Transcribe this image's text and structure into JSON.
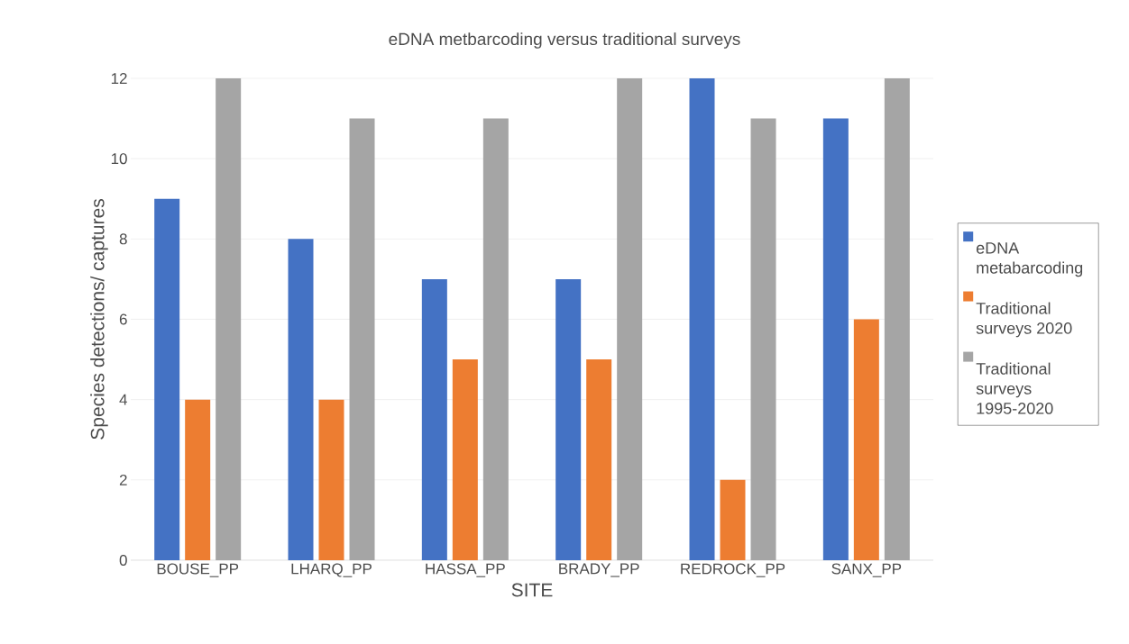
{
  "chart_data": {
    "type": "bar",
    "title": "eDNA metbarcoding versus traditional surveys",
    "xlabel": "SITE",
    "ylabel": "Species detections/ captures",
    "categories": [
      "BOUSE_PP",
      "LHARQ_PP",
      "HASSA_PP",
      "BRADY_PP",
      "REDROCK_PP",
      "SANX_PP"
    ],
    "series": [
      {
        "name": "eDNA metabarcoding",
        "color": "#4472c4",
        "values": [
          9,
          8,
          7,
          7,
          12,
          11
        ]
      },
      {
        "name": "Traditional surveys 2020",
        "color": "#ed7d31",
        "values": [
          4,
          4,
          5,
          5,
          2,
          6
        ]
      },
      {
        "name": "Traditional surveys 1995-2020",
        "color": "#a5a5a5",
        "values": [
          12,
          11,
          11,
          12,
          11,
          12
        ]
      }
    ],
    "ylim": [
      0,
      12
    ],
    "yticks": [
      0,
      2,
      4,
      6,
      8,
      10,
      12
    ],
    "grid": "y",
    "legend": "right"
  }
}
